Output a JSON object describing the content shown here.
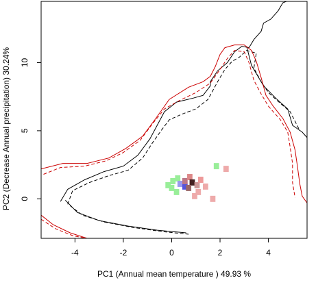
{
  "chart_data": {
    "type": "scatter",
    "title": "",
    "xlabel": "PC1 (Annual mean temperature ) 49.93 %",
    "ylabel": "PC2 (Decrease Annual precipitation) 30.24%",
    "xlim": [
      -5.4,
      5.6
    ],
    "ylim": [
      -2.9,
      14.5
    ],
    "x_ticks": [
      -4,
      -2,
      0,
      2,
      4
    ],
    "y_ticks": [
      0,
      5,
      10
    ],
    "x_tick_labels": [
      "-4",
      "-2",
      "0",
      "2",
      "4"
    ],
    "y_tick_labels": [
      "0",
      "5",
      "10"
    ],
    "grid": false,
    "legend": "none",
    "series": [
      {
        "style": "solid",
        "color": "#000000",
        "points": [
          [
            -4.6,
            -0.2
          ],
          [
            -4.3,
            0.7
          ],
          [
            -3.6,
            1.4
          ],
          [
            -2.8,
            2.0
          ],
          [
            -2.0,
            2.4
          ],
          [
            -1.4,
            3.2
          ],
          [
            -0.9,
            4.4
          ],
          [
            -0.6,
            5.4
          ],
          [
            -0.3,
            6.4
          ],
          [
            0.2,
            7.1
          ],
          [
            0.9,
            7.4
          ],
          [
            1.3,
            7.6
          ],
          [
            1.6,
            8.3
          ],
          [
            1.6,
            8.6
          ],
          [
            1.9,
            9.4
          ],
          [
            2.3,
            10.0
          ],
          [
            2.6,
            10.8
          ],
          [
            2.9,
            11.2
          ],
          [
            3.2,
            11.1
          ],
          [
            3.4,
            11.7
          ],
          [
            3.7,
            12.3
          ],
          [
            3.8,
            12.9
          ],
          [
            4.1,
            13.2
          ],
          [
            4.4,
            13.8
          ],
          [
            4.6,
            14.4
          ],
          [
            4.9,
            14.6
          ]
        ]
      },
      {
        "style": "solid",
        "color": "#000000",
        "points": [
          [
            3.1,
            11.2
          ],
          [
            3.3,
            9.8
          ],
          [
            3.8,
            8.3
          ],
          [
            4.3,
            7.4
          ],
          [
            4.8,
            6.6
          ],
          [
            5.0,
            5.4
          ],
          [
            5.4,
            4.9
          ],
          [
            5.6,
            4.5
          ]
        ]
      },
      {
        "style": "solid",
        "color": "#000000",
        "points": [
          [
            -4.4,
            -0.1
          ],
          [
            -3.9,
            -1.0
          ],
          [
            -3.0,
            -1.6
          ],
          [
            -1.8,
            -2.0
          ],
          [
            -0.6,
            -2.3
          ],
          [
            0.6,
            -2.5
          ]
        ]
      },
      {
        "style": "dashed",
        "color": "#000000",
        "points": [
          [
            -4.3,
            -0.4
          ],
          [
            -4.1,
            0.6
          ],
          [
            -3.4,
            1.2
          ],
          [
            -2.6,
            1.7
          ],
          [
            -1.8,
            2.1
          ],
          [
            -1.2,
            3.0
          ],
          [
            -0.8,
            4.1
          ],
          [
            -0.4,
            5.1
          ],
          [
            -0.1,
            5.8
          ],
          [
            0.4,
            6.2
          ],
          [
            1.0,
            6.6
          ],
          [
            1.5,
            7.3
          ],
          [
            1.9,
            8.6
          ],
          [
            2.2,
            9.5
          ],
          [
            2.5,
            10.1
          ],
          [
            2.8,
            10.4
          ],
          [
            3.1,
            10.9
          ],
          [
            3.5,
            10.7
          ],
          [
            3.4,
            9.6
          ],
          [
            3.7,
            8.6
          ],
          [
            4.0,
            7.8
          ],
          [
            4.5,
            7.0
          ],
          [
            4.9,
            6.4
          ],
          [
            5.1,
            5.7
          ],
          [
            5.3,
            5.0
          ]
        ]
      },
      {
        "style": "dashed",
        "color": "#000000",
        "points": [
          [
            -4.2,
            -0.5
          ],
          [
            -3.7,
            -1.2
          ],
          [
            -2.8,
            -1.7
          ],
          [
            -1.6,
            -2.1
          ],
          [
            -0.4,
            -2.4
          ],
          [
            0.7,
            -2.6
          ]
        ]
      },
      {
        "style": "solid",
        "color": "#cc0000",
        "points": [
          [
            -5.4,
            2.2
          ],
          [
            -4.5,
            2.6
          ],
          [
            -3.5,
            2.6
          ],
          [
            -2.6,
            3.0
          ],
          [
            -1.9,
            3.7
          ],
          [
            -1.2,
            4.6
          ],
          [
            -0.7,
            5.8
          ],
          [
            -0.1,
            7.3
          ],
          [
            0.7,
            8.2
          ],
          [
            1.3,
            8.6
          ],
          [
            1.6,
            9.0
          ],
          [
            1.8,
            9.7
          ],
          [
            2.0,
            10.6
          ],
          [
            2.2,
            11.1
          ],
          [
            2.6,
            11.3
          ],
          [
            3.0,
            11.3
          ],
          [
            3.3,
            10.9
          ],
          [
            3.5,
            10.1
          ],
          [
            3.7,
            8.9
          ],
          [
            3.9,
            7.6
          ],
          [
            4.2,
            6.8
          ],
          [
            4.6,
            5.9
          ],
          [
            4.9,
            4.9
          ],
          [
            5.1,
            3.6
          ],
          [
            5.2,
            2.4
          ],
          [
            5.3,
            1.1
          ],
          [
            5.4,
            0.2
          ],
          [
            5.6,
            -0.3
          ]
        ]
      },
      {
        "style": "dashed",
        "color": "#cc0000",
        "points": [
          [
            -5.3,
            1.8
          ],
          [
            -4.6,
            2.3
          ],
          [
            -3.6,
            2.4
          ],
          [
            -2.7,
            2.8
          ],
          [
            -2.0,
            3.4
          ],
          [
            -1.3,
            4.3
          ],
          [
            -0.8,
            5.5
          ],
          [
            -0.3,
            6.6
          ],
          [
            0.3,
            7.2
          ],
          [
            1.0,
            7.8
          ],
          [
            1.6,
            8.5
          ],
          [
            2.0,
            9.5
          ],
          [
            2.3,
            10.3
          ],
          [
            2.6,
            10.9
          ],
          [
            3.0,
            10.8
          ],
          [
            3.2,
            10.0
          ],
          [
            3.4,
            8.7
          ],
          [
            3.7,
            7.7
          ],
          [
            4.0,
            6.8
          ],
          [
            4.5,
            5.8
          ],
          [
            4.8,
            4.9
          ],
          [
            4.9,
            3.8
          ],
          [
            5.0,
            2.6
          ],
          [
            5.0,
            1.2
          ],
          [
            5.1,
            0.1
          ]
        ]
      },
      {
        "style": "solid",
        "color": "#cc0000",
        "points": [
          [
            -5.4,
            -1.2
          ],
          [
            -4.9,
            -1.9
          ],
          [
            -4.2,
            -2.5
          ],
          [
            -3.5,
            -2.9
          ]
        ]
      },
      {
        "style": "dashed",
        "color": "#cc0000",
        "points": [
          [
            -5.4,
            -1.5
          ],
          [
            -4.8,
            -2.2
          ],
          [
            -4.1,
            -2.7
          ],
          [
            -3.3,
            -3.0
          ]
        ]
      }
    ],
    "density_cells": [
      {
        "x": -0.15,
        "y": 1.0,
        "color": "#99ee99"
      },
      {
        "x": 0.0,
        "y": 0.8,
        "color": "#99ee99"
      },
      {
        "x": 0.05,
        "y": 1.3,
        "color": "#99ee99"
      },
      {
        "x": 0.25,
        "y": 1.5,
        "color": "#99ee99"
      },
      {
        "x": 0.2,
        "y": 0.5,
        "color": "#99ee99"
      },
      {
        "x": 0.35,
        "y": 1.1,
        "color": "#9999ee"
      },
      {
        "x": 0.55,
        "y": 0.9,
        "color": "#5555dd"
      },
      {
        "x": 0.55,
        "y": 1.3,
        "color": "#bb7788"
      },
      {
        "x": 0.75,
        "y": 1.6,
        "color": "#dd8888"
      },
      {
        "x": 0.85,
        "y": 1.2,
        "color": "#442222"
      },
      {
        "x": 0.7,
        "y": 0.8,
        "color": "#996666"
      },
      {
        "x": 1.05,
        "y": 1.0,
        "color": "#cc9999"
      },
      {
        "x": 1.2,
        "y": 1.4,
        "color": "#ee9999"
      },
      {
        "x": 1.1,
        "y": 0.5,
        "color": "#eeaaaa"
      },
      {
        "x": 1.4,
        "y": 0.9,
        "color": "#eeaaaa"
      },
      {
        "x": 0.95,
        "y": 0.2,
        "color": "#eeaaaa"
      },
      {
        "x": 1.7,
        "y": 0.0,
        "color": "#eeaaaa"
      },
      {
        "x": 1.85,
        "y": 2.4,
        "color": "#99ee99"
      },
      {
        "x": 2.25,
        "y": 2.2,
        "color": "#eeaaaa"
      }
    ]
  }
}
